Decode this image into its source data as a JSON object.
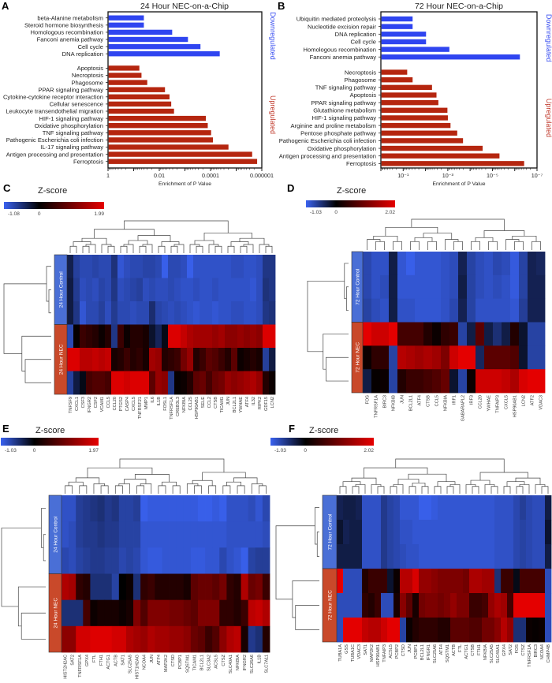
{
  "chart_data": [
    {
      "panel": "A",
      "type": "bar",
      "orientation": "horizontal",
      "title": "24 Hour NEC-on-a-Chip",
      "xlabel": "Enrichment of P Value",
      "x_scale": "log",
      "x_reversed": true,
      "xlim": [
        1,
        1e-06
      ],
      "x_tick_labels": [
        "1",
        "0.01",
        "0.0001",
        "0.000001"
      ],
      "series": [
        {
          "name": "Downregulated",
          "color": "#2f45f0",
          "categories": [
            "beta-Alanine metabolism",
            "Steroid hormone biosynthesis",
            "Homologous recombination",
            "Fanconi anemia pathway",
            "Cell cycle",
            "DNA replication"
          ],
          "values": [
            0.042,
            0.042,
            0.0033,
            0.0008,
            0.00026,
            4.6e-05
          ]
        },
        {
          "name": "Upregulated",
          "color": "#b5260f",
          "categories": [
            "Apoptosis",
            "Necroptosis",
            "Phagosome",
            "PPAR signaling pathway",
            "Cytokine-cytokine receptor interaction",
            "Cellular senescence",
            "Leukocyte transendothelial migration",
            "HIF-1 signaling pathway",
            "Oxidative phosphorylation",
            "TNF signaling pathway",
            "Pathogenic Escherichia coli infection",
            "IL-17 signaling pathway",
            "Antigen processing and presentation",
            "Ferroptosis"
          ],
          "values": [
            0.063,
            0.052,
            0.031,
            0.0063,
            0.0042,
            0.0036,
            0.0028,
            0.00016,
            0.000135,
            0.0001,
            8.5e-05,
            2.1e-05,
            2.5e-06,
            1.6e-06
          ]
        }
      ]
    },
    {
      "panel": "B",
      "type": "bar",
      "orientation": "horizontal",
      "title": "72 Hour NEC-on-a-Chip",
      "xlabel": "Enrichment of P Value",
      "x_scale": "log",
      "x_reversed": true,
      "xlim": [
        1,
        1e-07
      ],
      "x_tick_labels": [
        "10⁻¹",
        "10⁻³",
        "10⁻⁵",
        "10⁻⁷"
      ],
      "series": [
        {
          "name": "Downregulated",
          "color": "#2f45f0",
          "categories": [
            "Ubiquitin mediated proteolysis",
            "Nucleotide excision repair",
            "DNA replication",
            "Cell cycle",
            "Homologous recombination",
            "Fanconi anemia pathway"
          ],
          "values": [
            0.04,
            0.04,
            0.01,
            0.01,
            0.0009,
            6.2e-07
          ]
        },
        {
          "name": "Upregulated",
          "color": "#b5260f",
          "categories": [
            "Necroptosis",
            "Phagosome",
            "TNF signaling pathway",
            "Apoptosis",
            "PPAR signaling pathway",
            "Glutathione metabolism",
            "HIF-1 signaling pathway",
            "Arginine and proline metabolism",
            "Pentose phosphate pathway",
            "Pathogenic Escherichia coli infection",
            "Oxidative phosphorylation",
            "Antigen processing and presentation",
            "Ferroptosis"
          ],
          "values": [
            0.07,
            0.04,
            0.0054,
            0.0034,
            0.0028,
            0.0011,
            0.00105,
            0.0008,
            0.0004,
            0.00022,
            2.9e-05,
            5.1e-06,
            4e-07
          ]
        }
      ]
    },
    {
      "panel": "C",
      "type": "heatmap",
      "title": "Z-score",
      "colorbar": {
        "min": -1.08,
        "max": 1.99,
        "tick_labels": [
          "-1.08",
          "0",
          "1.99"
        ],
        "low_color": "#3a62f0",
        "mid_color": "#000000",
        "high_color": "#e60000"
      },
      "row_groups": [
        {
          "label": "24 Hour Control",
          "rows": 3,
          "color": "#4a6fd6"
        },
        {
          "label": "24 Hour NEC",
          "rows": 3,
          "color": "#c9492a"
        }
      ],
      "columns": [
        "TNFSF9",
        "CXCL1",
        "CSF3",
        "IFNGR2",
        "CSF2",
        "VCAM1",
        "CCL5",
        "CCL20",
        "PTGS2",
        "CASP4",
        "CXCL5",
        "TNFRSF21",
        "MMP1",
        "IL6",
        "IL1B",
        "FOSL1",
        "TNFRSF1A",
        "CREB3L3",
        "NFKBIA",
        "CCL25",
        "HSP90AB1",
        "SELE",
        "CCL2",
        "CTSB",
        "TICAM1",
        "JUN",
        "BCL2L1",
        "YWHAE",
        "ATF4",
        "IL32",
        "RIPK2",
        "GDF15",
        "LCN2"
      ],
      "values": [
        [
          -0.35,
          -0.7,
          -0.8,
          -0.8,
          -0.75,
          -0.8,
          -0.8,
          -0.55,
          -0.95,
          -0.85,
          -0.8,
          -0.8,
          -0.75,
          -0.75,
          -0.8,
          -1.05,
          -0.8,
          -0.8,
          -0.85,
          -1.05,
          -0.9,
          -0.9,
          -0.9,
          -0.9,
          -0.9,
          -0.9,
          -0.85,
          -0.85,
          -0.9,
          -0.9,
          -0.85,
          -0.6,
          -0.6
        ],
        [
          -0.3,
          -0.65,
          -0.85,
          -0.8,
          -0.85,
          -0.75,
          -0.8,
          -0.6,
          -0.85,
          -0.8,
          -0.75,
          -0.7,
          -0.85,
          -0.8,
          -0.85,
          -0.85,
          -0.8,
          -0.85,
          -0.9,
          -0.9,
          -0.85,
          -0.9,
          -0.9,
          -0.85,
          -0.9,
          -0.9,
          -0.9,
          -0.9,
          -0.9,
          -0.95,
          -0.85,
          -0.55,
          -0.6
        ],
        [
          -0.3,
          -0.6,
          -0.95,
          -0.8,
          -0.8,
          -0.7,
          -0.85,
          -0.65,
          -0.8,
          -0.8,
          -0.85,
          -0.8,
          -0.8,
          -0.5,
          -0.75,
          -0.8,
          -0.85,
          -0.8,
          -0.85,
          -0.9,
          -0.95,
          -0.9,
          -0.9,
          -0.95,
          -0.9,
          -0.9,
          -0.85,
          -0.85,
          -0.9,
          -0.9,
          -0.85,
          -0.6,
          -0.55
        ],
        [
          -0.8,
          0.05,
          0.5,
          0.4,
          0.3,
          0.1,
          0.3,
          -0.6,
          0.5,
          0.1,
          0.3,
          0.3,
          0.2,
          -0.2,
          -0.4,
          -0.1,
          1.9,
          1.9,
          1.7,
          1.5,
          1.4,
          1.4,
          1.4,
          1.3,
          1.4,
          1.2,
          1.2,
          1.3,
          1.2,
          1.3,
          1.2,
          1.9,
          1.9
        ],
        [
          1.9,
          1.9,
          1.6,
          1.6,
          1.7,
          1.6,
          1.7,
          0.2,
          0.3,
          0.5,
          0.3,
          0.4,
          0.2,
          1.4,
          1.3,
          0.3,
          0.4,
          0.5,
          1.0,
          1.3,
          0.3,
          0.5,
          0.8,
          0.7,
          0.5,
          0.3,
          0.8,
          0.1,
          0.2,
          0.3,
          0.2,
          -0.7,
          -0.3
        ],
        [
          -0.7,
          -0.3,
          -0.1,
          0.6,
          0.7,
          0.7,
          0.6,
          1.9,
          1.9,
          1.8,
          1.9,
          1.9,
          1.9,
          0.8,
          1.3,
          1.2,
          -0.6,
          0.05,
          0.1,
          0.3,
          0.8,
          0.9,
          0.6,
          0.9,
          1.0,
          1.3,
          1.2,
          1.3,
          1.4,
          1.5,
          1.3,
          0.3,
          0.1
        ]
      ]
    },
    {
      "panel": "D",
      "type": "heatmap",
      "title": "Z-score",
      "colorbar": {
        "min": -1.03,
        "max": 2.02,
        "tick_labels": [
          "-1.03",
          "0",
          "2.02"
        ],
        "low_color": "#3a62f0",
        "mid_color": "#000000",
        "high_color": "#e60000"
      },
      "row_groups": [
        {
          "label": "72 Hour Control",
          "rows": 3,
          "color": "#4a6fd6"
        },
        {
          "label": "72 Hour NEC",
          "rows": 3,
          "color": "#c9492a"
        }
      ],
      "columns": [
        "FOS",
        "TNFRSF1A",
        "BIRC3",
        "NFKBIB",
        "JUN",
        "BCL2L1",
        "ATF4",
        "CTSB",
        "CCL5",
        "NFKBIA",
        "IRF1",
        "GABARAPL2",
        "IRF3",
        "CCL20",
        "YWHAE",
        "TNFAIP3",
        "CXCL5",
        "HSP90AB1",
        "LCN2",
        "ATF2",
        "VDAC3"
      ],
      "values": [
        [
          -0.75,
          -0.85,
          -0.85,
          -0.3,
          -0.9,
          -1.0,
          -0.9,
          -0.9,
          -0.9,
          -0.85,
          -0.8,
          -0.35,
          -0.7,
          -0.8,
          -0.85,
          -0.75,
          -0.8,
          -0.95,
          -0.7,
          -0.35,
          -0.4
        ],
        [
          -0.75,
          -0.85,
          -0.8,
          -0.3,
          -0.9,
          -0.9,
          -0.9,
          -0.9,
          -0.9,
          -0.85,
          -0.8,
          -0.3,
          -0.7,
          -0.8,
          -0.85,
          -0.8,
          -0.85,
          -0.95,
          -0.7,
          -0.35,
          -0.35
        ],
        [
          -0.7,
          -0.8,
          -0.85,
          -0.3,
          -0.85,
          -0.85,
          -0.9,
          -0.9,
          -0.9,
          -0.85,
          -0.75,
          -0.35,
          -0.7,
          -0.85,
          -0.85,
          -0.85,
          -0.85,
          -0.9,
          -0.65,
          -0.35,
          -0.35
        ],
        [
          2.0,
          1.8,
          1.8,
          2.0,
          0.6,
          0.6,
          0.6,
          0.3,
          0.1,
          0.4,
          0.5,
          -0.7,
          -0.3,
          0.8,
          -0.3,
          -0.5,
          -0.3,
          0.3,
          -0.2,
          -0.7,
          -0.7
        ],
        [
          0.1,
          0.4,
          0.4,
          -0.7,
          1.6,
          1.5,
          1.4,
          1.5,
          1.4,
          1.1,
          1.8,
          2.0,
          2.0,
          -0.4,
          0.8,
          0.8,
          0.8,
          0.7,
          -0.2,
          -0.7,
          -0.7
        ],
        [
          -0.3,
          0.05,
          0.1,
          -0.7,
          0.3,
          0.5,
          0.5,
          0.6,
          0.7,
          0.9,
          -0.2,
          -0.7,
          0.1,
          1.8,
          1.8,
          1.8,
          1.7,
          1.5,
          1.9,
          2.0,
          2.0
        ]
      ]
    },
    {
      "panel": "E",
      "type": "heatmap",
      "title": "Z-score",
      "colorbar": {
        "min": -1.03,
        "max": 1.97,
        "tick_labels": [
          "-1.03",
          "0",
          "1.97"
        ],
        "low_color": "#3a62f0",
        "mid_color": "#000000",
        "high_color": "#e60000"
      },
      "row_groups": [
        {
          "label": "24 Hour Control",
          "rows": 3,
          "color": "#4a6fd6"
        },
        {
          "label": "24 Hour NEC",
          "rows": 3,
          "color": "#c9492a"
        }
      ],
      "columns": [
        "HIST2H2AC",
        "SAT2",
        "TNFRSF1A",
        "GPX4",
        "FTL",
        "FTH1",
        "ACTG1",
        "ACTB",
        "SAT1",
        "SLC25A5",
        "HIST1H2AG",
        "NCOA4",
        "JUN",
        "ATF4",
        "MAP2K2",
        "CTSD",
        "PCBP1",
        "SQSTM1",
        "TICAM1",
        "BCL2L1",
        "SLC3A2",
        "ACSL5",
        "CTSZ",
        "SLC40A1",
        "NFKBIA",
        "IFNGR2",
        "SLC26A6",
        "IL1B",
        "SLC7A11"
      ],
      "values": [
        [
          -0.85,
          -0.85,
          -0.65,
          -0.6,
          -0.55,
          -0.5,
          -0.6,
          -0.55,
          -0.7,
          -0.7,
          -0.65,
          -1.0,
          -0.95,
          -0.95,
          -0.95,
          -0.95,
          -0.95,
          -0.95,
          -0.95,
          -1.0,
          -1.0,
          -0.95,
          -1.0,
          -0.85,
          -0.85,
          -0.85,
          -0.8,
          -0.9,
          -0.75
        ],
        [
          -0.85,
          -0.8,
          -0.65,
          -0.6,
          -0.6,
          -0.55,
          -0.6,
          -0.6,
          -0.7,
          -0.7,
          -0.7,
          -0.9,
          -0.9,
          -0.9,
          -0.9,
          -0.9,
          -0.9,
          -0.9,
          -0.9,
          -0.9,
          -0.9,
          -0.9,
          -0.9,
          -0.85,
          -0.85,
          -0.85,
          -0.85,
          -0.85,
          -0.8
        ],
        [
          -0.75,
          -0.8,
          -0.7,
          -0.65,
          -0.6,
          -0.6,
          -0.65,
          -0.65,
          -0.75,
          -0.7,
          -0.75,
          -0.9,
          -0.95,
          -0.95,
          -0.9,
          -0.9,
          -0.9,
          -0.9,
          -0.95,
          -0.95,
          -0.9,
          -0.9,
          -0.75,
          -0.85,
          -0.9,
          -1.0,
          -0.7,
          -0.65,
          -0.65
        ],
        [
          1.5,
          1.4,
          0.4,
          0.3,
          -0.5,
          -0.5,
          -0.5,
          -0.7,
          0.0,
          0.1,
          -0.5,
          0.4,
          0.5,
          0.3,
          0.3,
          0.3,
          0.3,
          0.2,
          0.8,
          0.9,
          0.9,
          0.8,
          1.0,
          0.4,
          0.3,
          1.5,
          0.9,
          1.0,
          0.5
        ],
        [
          -0.5,
          -0.5,
          -0.5,
          0.6,
          0.1,
          0.2,
          0.2,
          0.2,
          0.1,
          0.2,
          1.1,
          0.7,
          1.1,
          1.1,
          1.1,
          1.0,
          1.0,
          0.9,
          0.8,
          1.1,
          1.1,
          1.1,
          0.4,
          0.4,
          0.3,
          0.5,
          1.6,
          1.7,
          1.5
        ],
        [
          1.2,
          1.2,
          1.8,
          1.8,
          1.9,
          1.9,
          1.9,
          1.8,
          1.8,
          1.5,
          1.4,
          1.3,
          1.5,
          1.4,
          1.4,
          1.3,
          1.3,
          1.2,
          0.9,
          0.8,
          0.5,
          0.7,
          1.2,
          1.5,
          1.6,
          0.2,
          -0.6,
          -0.5,
          0.3
        ]
      ]
    },
    {
      "panel": "F",
      "type": "heatmap",
      "title": "Z-score",
      "colorbar": {
        "min": -1.03,
        "max": 2.02,
        "tick_labels": [
          "-1.03",
          "0",
          "2.02"
        ],
        "low_color": "#3a62f0",
        "mid_color": "#000000",
        "high_color": "#e60000"
      },
      "row_groups": [
        {
          "label": "72 Hour Control",
          "rows": 3,
          "color": "#4a6fd6"
        },
        {
          "label": "72 Hour NEC",
          "rows": 3,
          "color": "#c9492a"
        }
      ],
      "columns": [
        "TUBA1A",
        "GSS",
        "TUBA1C",
        "VDAC3",
        "SAT1",
        "MAP2K2",
        "HSP90AB1",
        "TNFAIP3",
        "ACSL5",
        "PCBP2",
        "CTSD",
        "JUN",
        "PCBP1",
        "BCL2L1",
        "IFNGR1",
        "SLC25A6",
        "ATF4",
        "SQSTM1",
        "ACTB",
        "FTL",
        "ACTG1",
        "CTSB",
        "FTH1",
        "NFKBIA",
        "SLC25A5",
        "SLC40A1",
        "GPX4",
        "SAT2",
        "FOS",
        "CTSZ",
        "TNFRSF1A",
        "BIRC3",
        "NCOA4",
        "CHMP4B"
      ],
      "values": [
        [
          -0.35,
          -0.3,
          -0.3,
          -0.35,
          -0.85,
          -0.85,
          -0.85,
          -0.6,
          -0.7,
          -0.75,
          -0.9,
          -0.9,
          -0.9,
          -1.0,
          -1.0,
          -0.95,
          -0.9,
          -0.9,
          -0.9,
          -0.9,
          -0.9,
          -0.9,
          -0.9,
          -0.9,
          -0.9,
          -0.85,
          -0.85,
          -0.85,
          -0.75,
          -0.65,
          -0.75,
          -0.8,
          -0.8,
          -0.3
        ],
        [
          -0.2,
          -0.35,
          -0.3,
          -0.3,
          -0.85,
          -0.85,
          -0.85,
          -0.6,
          -0.7,
          -0.75,
          -0.85,
          -0.85,
          -0.9,
          -0.9,
          -0.9,
          -0.9,
          -0.9,
          -0.9,
          -0.9,
          -0.9,
          -0.9,
          -0.9,
          -0.9,
          -0.9,
          -0.9,
          -0.85,
          -0.85,
          -0.85,
          -0.75,
          -0.7,
          -0.75,
          -0.8,
          -0.8,
          -0.2
        ],
        [
          -0.3,
          -0.3,
          -0.3,
          -0.3,
          -0.85,
          -0.85,
          -0.85,
          -0.6,
          -0.7,
          -0.75,
          -0.8,
          -0.85,
          -0.85,
          -0.9,
          -0.9,
          -0.9,
          -0.9,
          -0.9,
          -0.9,
          -0.9,
          -0.9,
          -0.9,
          -0.9,
          -0.9,
          -0.9,
          -0.85,
          -0.85,
          -0.85,
          -0.75,
          -0.7,
          -0.75,
          -0.8,
          -0.8,
          -0.3
        ],
        [
          2.0,
          -0.8,
          -0.8,
          -0.8,
          0.3,
          0.5,
          0.5,
          0.5,
          -0.2,
          0.1,
          1.6,
          1.6,
          1.9,
          1.3,
          1.3,
          1.2,
          1.1,
          1.1,
          1.1,
          1.1,
          1.0,
          1.5,
          1.5,
          1.4,
          1.4,
          -0.5,
          0.5,
          0.5,
          -0.1,
          0.6,
          0.6,
          0.6,
          0.6,
          -0.8
        ],
        [
          -0.8,
          -0.8,
          -0.8,
          -0.8,
          0.4,
          0.3,
          0.5,
          -0.8,
          -0.8,
          0.2,
          1.2,
          0.8,
          0.2,
          1.0,
          1.1,
          1.1,
          1.0,
          1.1,
          1.3,
          1.1,
          1.1,
          0.5,
          0.5,
          0.6,
          1.3,
          1.5,
          1.4,
          0.6,
          2.0,
          2.0,
          2.0,
          2.0,
          2.0,
          -0.8
        ],
        [
          -0.8,
          2.0,
          2.0,
          2.0,
          1.7,
          1.6,
          1.6,
          1.8,
          2.0,
          2.0,
          -0.7,
          0.1,
          0.3,
          0.4,
          0.4,
          0.4,
          0.3,
          0.3,
          0.8,
          0.8,
          0.8,
          0.7,
          0.7,
          1.0,
          1.0,
          1.2,
          1.6,
          1.3,
          -0.5,
          -0.5,
          0.1,
          0.05,
          0.1,
          -0.8
        ]
      ]
    }
  ]
}
